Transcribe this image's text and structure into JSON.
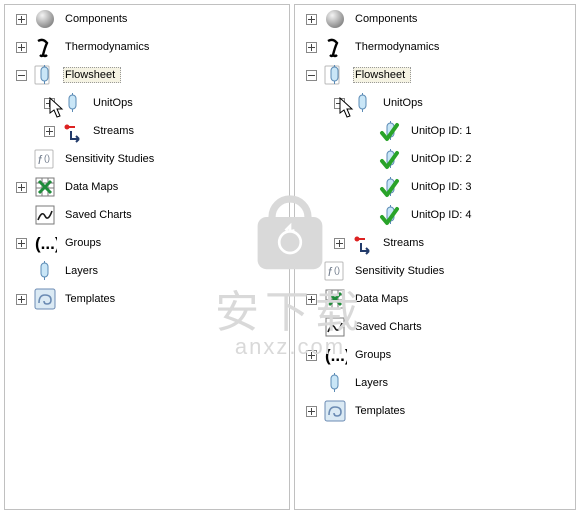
{
  "colors": {
    "border": "#c0c0c0",
    "text": "#000000",
    "selected_bg": "#f5f3e3",
    "watermark": "#d9d9d9"
  },
  "watermark": {
    "line1": "安下载",
    "line2": "anxz.com"
  },
  "icons": {
    "sphere": {
      "kind": "sphere",
      "c1": "#f4f4f4",
      "c2": "#8a8a8a"
    },
    "gamma": {
      "kind": "gamma",
      "stroke": "#000000"
    },
    "flowsheet": {
      "kind": "vessel",
      "fill": "#c9e6f7",
      "stroke": "#5b8bb5",
      "paper": true
    },
    "unitops": {
      "kind": "vessel",
      "fill": "#c9e6f7",
      "stroke": "#5b8bb5",
      "paper": false
    },
    "unitop_ok": {
      "kind": "vessel_check",
      "fill": "#c9e6f7",
      "stroke": "#5b8bb5",
      "check": "#29a329"
    },
    "streams": {
      "kind": "arrow",
      "head": "#d22",
      "shaft": "#223a6a"
    },
    "sensitivity": {
      "kind": "fx",
      "stroke": "#6f7a8a"
    },
    "datamaps": {
      "kind": "excel",
      "fill": "#ffffff",
      "x": "#1f8b3a",
      "border": "#7a7a7a"
    },
    "charts": {
      "kind": "chart",
      "fill": "#ffffff",
      "line": "#1a1a1a",
      "border": "#7a7a7a"
    },
    "groups": {
      "kind": "parens",
      "stroke": "#000000"
    },
    "layers": {
      "kind": "vessel",
      "fill": "#c9e6f7",
      "stroke": "#5b8bb5",
      "paper": false
    },
    "templates": {
      "kind": "swirl",
      "fill": "#dbeaf4",
      "stroke": "#6b8bb3"
    }
  },
  "left": {
    "rows": [
      {
        "indent": 0,
        "expander": "plus",
        "icon": "sphere",
        "label": "Components",
        "interact": true,
        "name": "node-components"
      },
      {
        "indent": 0,
        "expander": "plus",
        "icon": "gamma",
        "label": "Thermodynamics",
        "interact": true,
        "name": "node-thermodynamics"
      },
      {
        "indent": 0,
        "expander": "minus",
        "icon": "flowsheet",
        "label": "Flowsheet",
        "selected": true,
        "interact": true,
        "name": "node-flowsheet"
      },
      {
        "indent": 1,
        "expander": "plus",
        "icon": "unitops",
        "label": "UnitOps",
        "cursor": true,
        "interact": true,
        "name": "node-unitops"
      },
      {
        "indent": 1,
        "expander": "plus",
        "icon": "streams",
        "label": "Streams",
        "interact": true,
        "name": "node-streams"
      },
      {
        "indent": 0,
        "expander": "none",
        "icon": "sensitivity",
        "label": "Sensitivity Studies",
        "interact": true,
        "name": "node-sensitivity"
      },
      {
        "indent": 0,
        "expander": "plus",
        "icon": "datamaps",
        "label": "Data Maps",
        "interact": true,
        "name": "node-datamaps"
      },
      {
        "indent": 0,
        "expander": "none",
        "icon": "charts",
        "label": "Saved Charts",
        "interact": true,
        "name": "node-savedcharts"
      },
      {
        "indent": 0,
        "expander": "plus",
        "icon": "groups",
        "label": "Groups",
        "interact": true,
        "name": "node-groups"
      },
      {
        "indent": 0,
        "expander": "none",
        "icon": "layers",
        "label": "Layers",
        "interact": true,
        "name": "node-layers"
      },
      {
        "indent": 0,
        "expander": "plus",
        "icon": "templates",
        "label": "Templates",
        "interact": true,
        "name": "node-templates"
      }
    ]
  },
  "right": {
    "rows": [
      {
        "indent": 0,
        "expander": "plus",
        "icon": "sphere",
        "label": "Components",
        "interact": true,
        "name": "node-components"
      },
      {
        "indent": 0,
        "expander": "plus",
        "icon": "gamma",
        "label": "Thermodynamics",
        "interact": true,
        "name": "node-thermodynamics"
      },
      {
        "indent": 0,
        "expander": "minus",
        "icon": "flowsheet",
        "label": "Flowsheet",
        "selected": true,
        "interact": true,
        "name": "node-flowsheet"
      },
      {
        "indent": 1,
        "expander": "minus",
        "icon": "unitops",
        "label": "UnitOps",
        "cursor": true,
        "interact": true,
        "name": "node-unitops"
      },
      {
        "indent": 2,
        "expander": "none",
        "icon": "unitop_ok",
        "label": "UnitOp ID: 1",
        "interact": true,
        "name": "node-unitop-1"
      },
      {
        "indent": 2,
        "expander": "none",
        "icon": "unitop_ok",
        "label": "UnitOp ID: 2",
        "interact": true,
        "name": "node-unitop-2"
      },
      {
        "indent": 2,
        "expander": "none",
        "icon": "unitop_ok",
        "label": "UnitOp ID: 3",
        "interact": true,
        "name": "node-unitop-3"
      },
      {
        "indent": 2,
        "expander": "none",
        "icon": "unitop_ok",
        "label": "UnitOp ID: 4",
        "interact": true,
        "name": "node-unitop-4"
      },
      {
        "indent": 1,
        "expander": "plus",
        "icon": "streams",
        "label": "Streams",
        "interact": true,
        "name": "node-streams"
      },
      {
        "indent": 0,
        "expander": "none",
        "icon": "sensitivity",
        "label": "Sensitivity Studies",
        "interact": true,
        "name": "node-sensitivity"
      },
      {
        "indent": 0,
        "expander": "plus",
        "icon": "datamaps",
        "label": "Data Maps",
        "interact": true,
        "name": "node-datamaps"
      },
      {
        "indent": 0,
        "expander": "none",
        "icon": "charts",
        "label": "Saved Charts",
        "interact": true,
        "name": "node-savedcharts"
      },
      {
        "indent": 0,
        "expander": "plus",
        "icon": "groups",
        "label": "Groups",
        "interact": true,
        "name": "node-groups"
      },
      {
        "indent": 0,
        "expander": "none",
        "icon": "layers",
        "label": "Layers",
        "interact": true,
        "name": "node-layers"
      },
      {
        "indent": 0,
        "expander": "plus",
        "icon": "templates",
        "label": "Templates",
        "interact": true,
        "name": "node-templates"
      }
    ]
  }
}
